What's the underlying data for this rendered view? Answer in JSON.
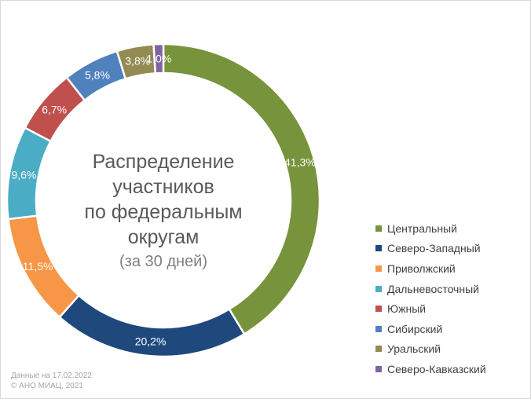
{
  "chart_data": {
    "type": "pie",
    "title": "Распределение участников по федеральным округам",
    "title_lines": [
      "Распределение",
      "участников",
      "по федеральным",
      "округам"
    ],
    "subtitle": "(за 30 дней)",
    "legend_position": "right",
    "categories": [
      "Центральный",
      "Северо-Западный",
      "Приволжский",
      "Дальневосточный",
      "Южный",
      "Сибирский",
      "Уральский",
      "Северо-Кавказский"
    ],
    "values": [
      41.3,
      20.2,
      11.5,
      9.6,
      6.7,
      5.8,
      3.8,
      1.0
    ],
    "data_labels": [
      "41,3%",
      "20,2%",
      "11,5%",
      "9,6%",
      "6,7%",
      "5,8%",
      "3,8%",
      "1,0%"
    ],
    "colors": [
      "#77933c",
      "#1f497d",
      "#f79646",
      "#4bacc6",
      "#c0504d",
      "#4f81bd",
      "#948a54",
      "#8064a2"
    ]
  },
  "footer": {
    "date_note": "Данные на 17.02.2022",
    "copyright": "© АНО МИАЦ, 2021"
  }
}
